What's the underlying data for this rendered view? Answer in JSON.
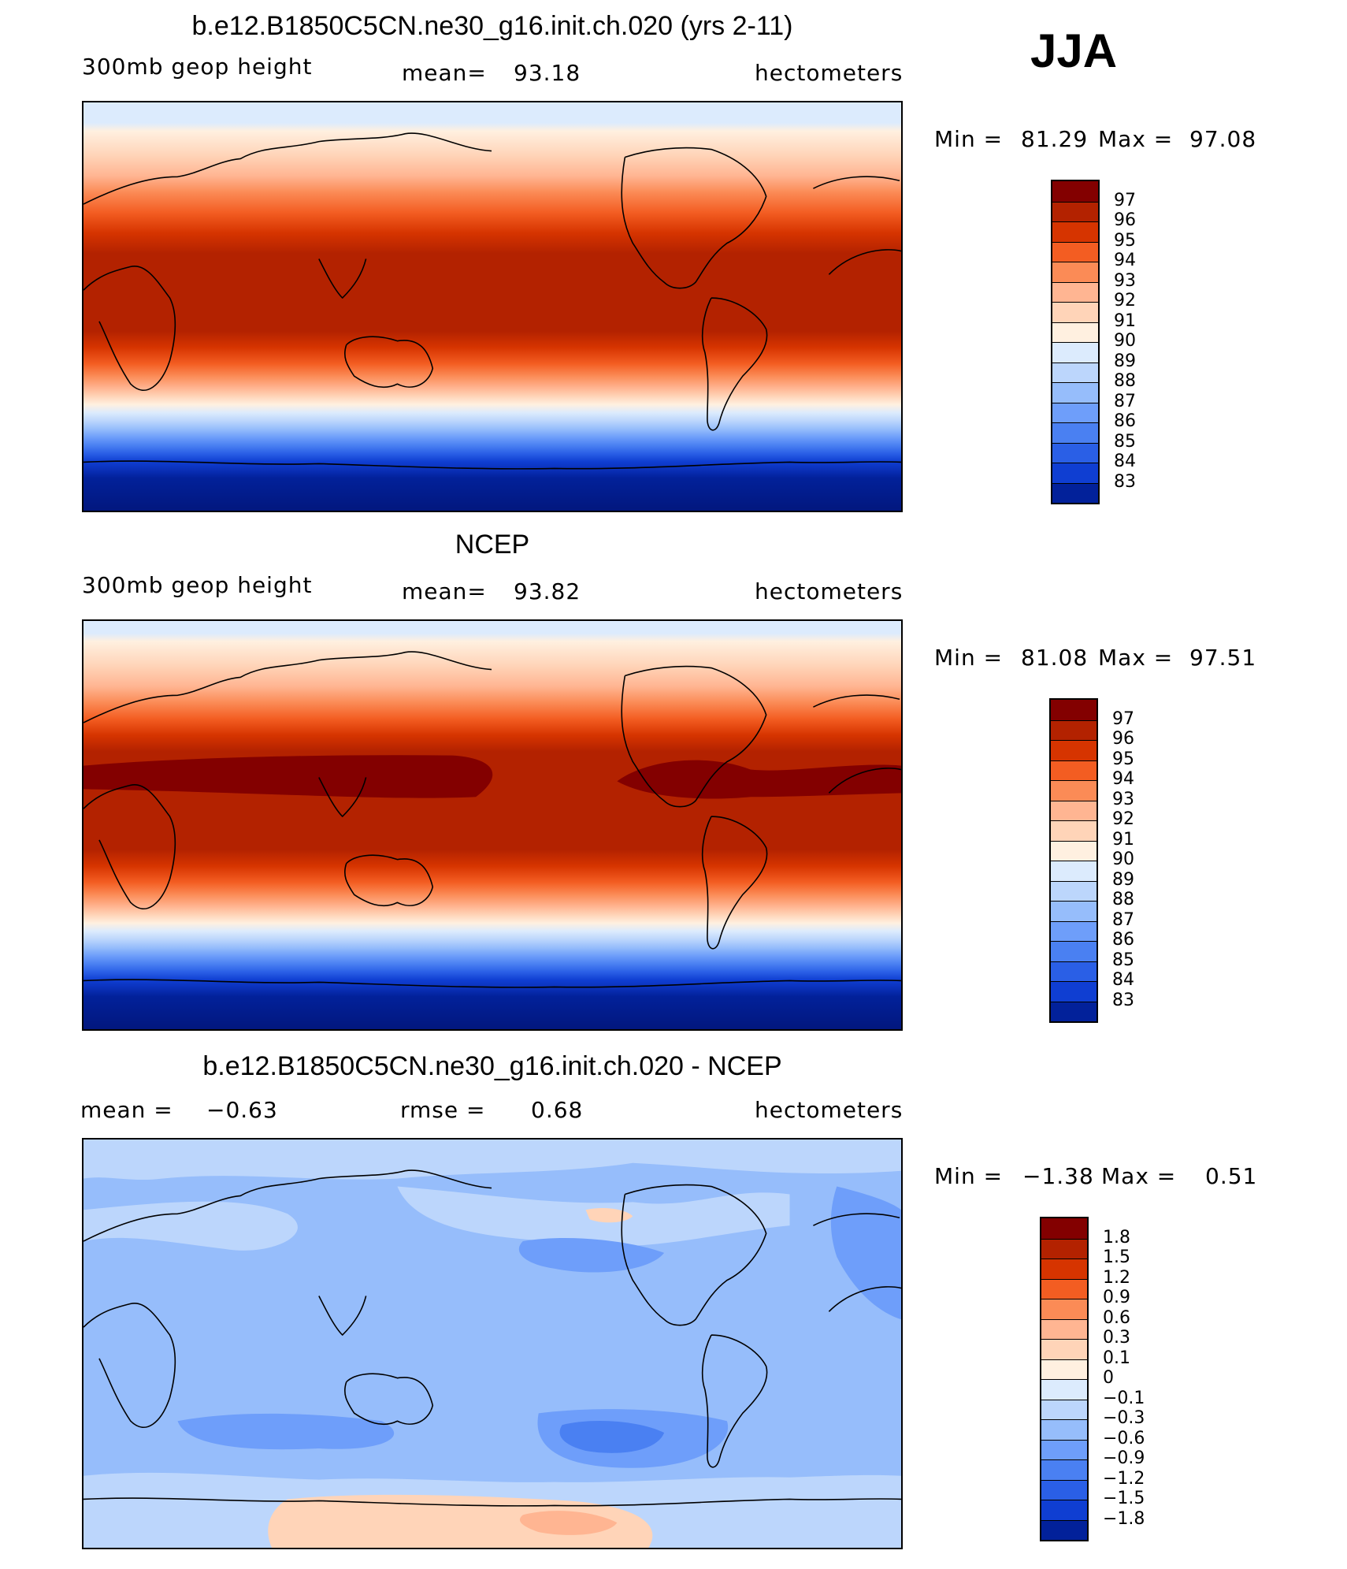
{
  "season": "JJA",
  "panels": [
    {
      "title": "b.e12.B1850C5CN.ne30_g16.init.ch.020 (yrs 2-11)",
      "left_label": "300mb geop height",
      "center_label": "mean=",
      "center_value": "93.18",
      "right_label": "hectometers",
      "min_label": "Min =",
      "min_value": "81.29",
      "max_label": "Max =",
      "max_value": "97.08",
      "colorbar_ticks": [
        "97",
        "96",
        "95",
        "94",
        "93",
        "92",
        "91",
        "90",
        "89",
        "88",
        "87",
        "86",
        "85",
        "84",
        "83"
      ],
      "colors": [
        "#830000",
        "#b32200",
        "#d63400",
        "#f35d22",
        "#fb8b56",
        "#ffb592",
        "#ffd4b8",
        "#fff0e0",
        "#dcebfd",
        "#bcd6fc",
        "#96bdfb",
        "#6e9efa",
        "#4a80f2",
        "#2a5fe6",
        "#0f3ed2",
        "#02219a"
      ]
    },
    {
      "title": "NCEP",
      "left_label": "300mb geop height",
      "center_label": "mean=",
      "center_value": "93.82",
      "right_label": "hectometers",
      "min_label": "Min =",
      "min_value": "81.08",
      "max_label": "Max =",
      "max_value": "97.51",
      "colorbar_ticks": [
        "97",
        "96",
        "95",
        "94",
        "93",
        "92",
        "91",
        "90",
        "89",
        "88",
        "87",
        "86",
        "85",
        "84",
        "83"
      ],
      "colors": [
        "#830000",
        "#b32200",
        "#d63400",
        "#f35d22",
        "#fb8b56",
        "#ffb592",
        "#ffd4b8",
        "#fff0e0",
        "#dcebfd",
        "#bcd6fc",
        "#96bdfb",
        "#6e9efa",
        "#4a80f2",
        "#2a5fe6",
        "#0f3ed2",
        "#02219a"
      ]
    },
    {
      "title": "b.e12.B1850C5CN.ne30_g16.init.ch.020 - NCEP",
      "left_label": "mean =",
      "left_value": "−0.63",
      "center_label": "rmse =",
      "center_value": "0.68",
      "right_label": "hectometers",
      "min_label": "Min =",
      "min_value": "−1.38",
      "max_label": "Max =",
      "max_value": "0.51",
      "colorbar_ticks": [
        "1.8",
        "1.5",
        "1.2",
        "0.9",
        "0.6",
        "0.3",
        "0.1",
        "0",
        "−0.1",
        "−0.3",
        "−0.6",
        "−0.9",
        "−1.2",
        "−1.5",
        "−1.8"
      ],
      "colors": [
        "#830000",
        "#b32200",
        "#d63400",
        "#f35d22",
        "#fb8b56",
        "#ffb592",
        "#ffd4b8",
        "#fff0e0",
        "#dcebfd",
        "#bcd6fc",
        "#96bdfb",
        "#6e9efa",
        "#4a80f2",
        "#2a5fe6",
        "#0f3ed2",
        "#02219a"
      ]
    }
  ]
}
